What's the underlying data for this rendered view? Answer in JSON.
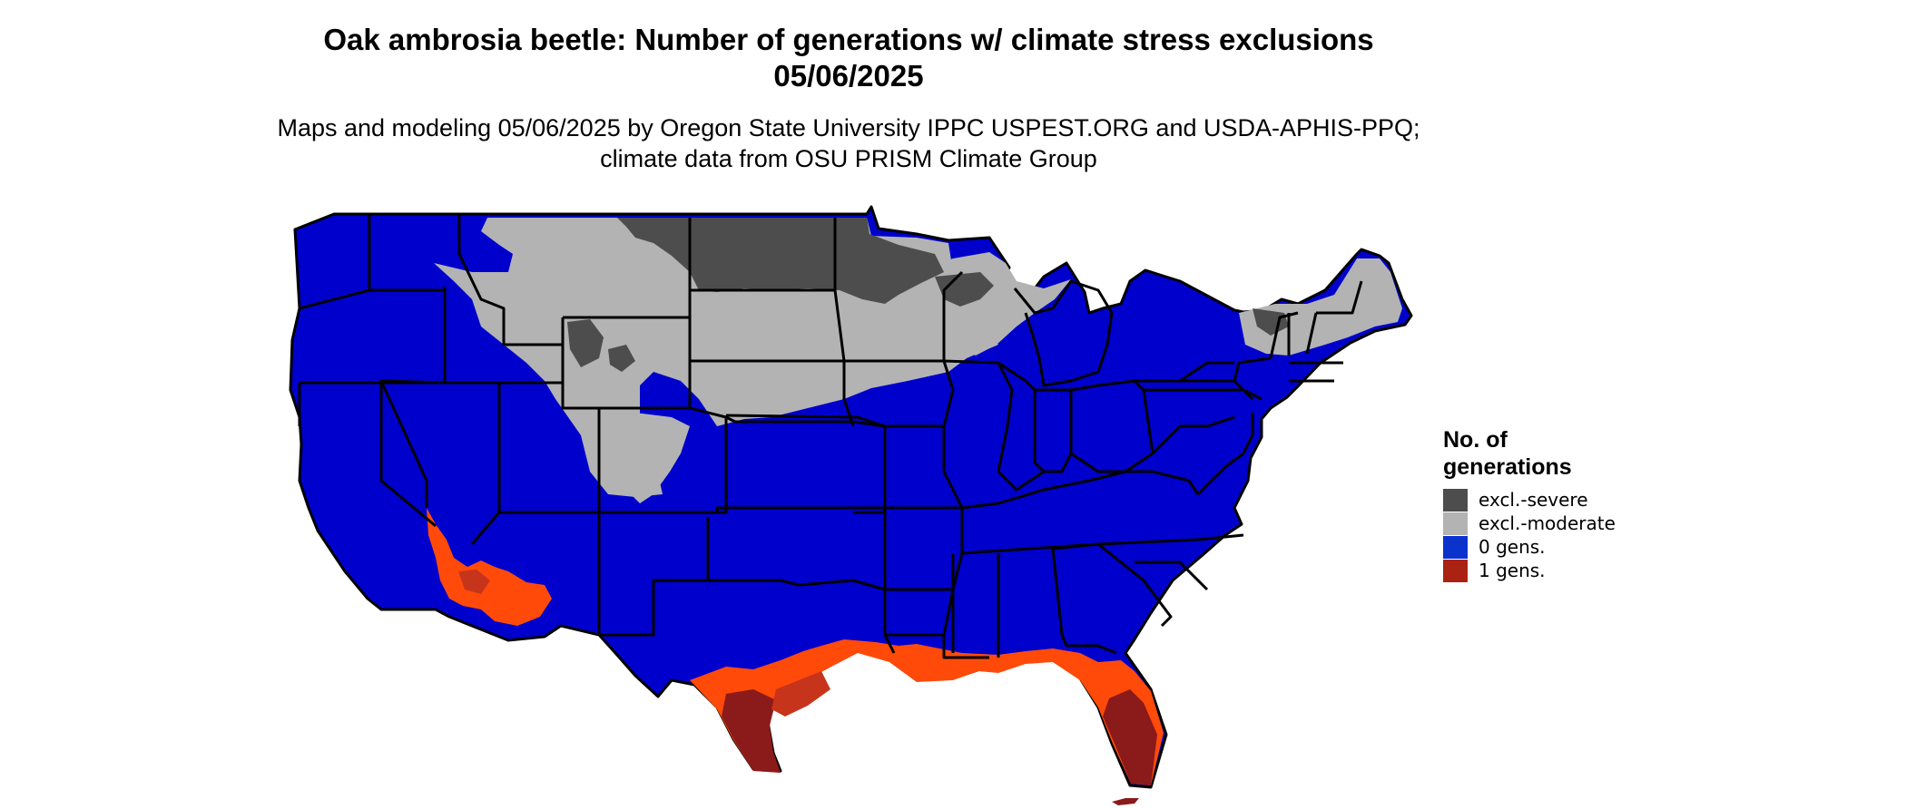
{
  "title": "Oak ambrosia beetle: Number of generations w/ climate stress exclusions 05/06/2025",
  "subtitle": "Maps and modeling 05/06/2025 by Oregon State University IPPC USPEST.ORG and USDA-APHIS-PPQ; climate data from OSU PRISM Climate Group",
  "legend": {
    "title": "No. of generations",
    "items": [
      {
        "label": "excl.-severe",
        "color": "#4d4d4d"
      },
      {
        "label": "excl.-moderate",
        "color": "#b3b3b3"
      },
      {
        "label": "0 gens.",
        "color": "#0a32cc"
      },
      {
        "label": "1 gens.",
        "color": "#aa2211"
      }
    ]
  },
  "colors": {
    "zero_gens_map": "#0000cc",
    "excl_severe": "#4d4d4d",
    "excl_moderate": "#b3b3b3",
    "one_gen_light": "#ff4a0a",
    "one_gen_dark": "#8b1a1a",
    "one_gen_mid": "#c7341c",
    "state_border": "#000000"
  }
}
